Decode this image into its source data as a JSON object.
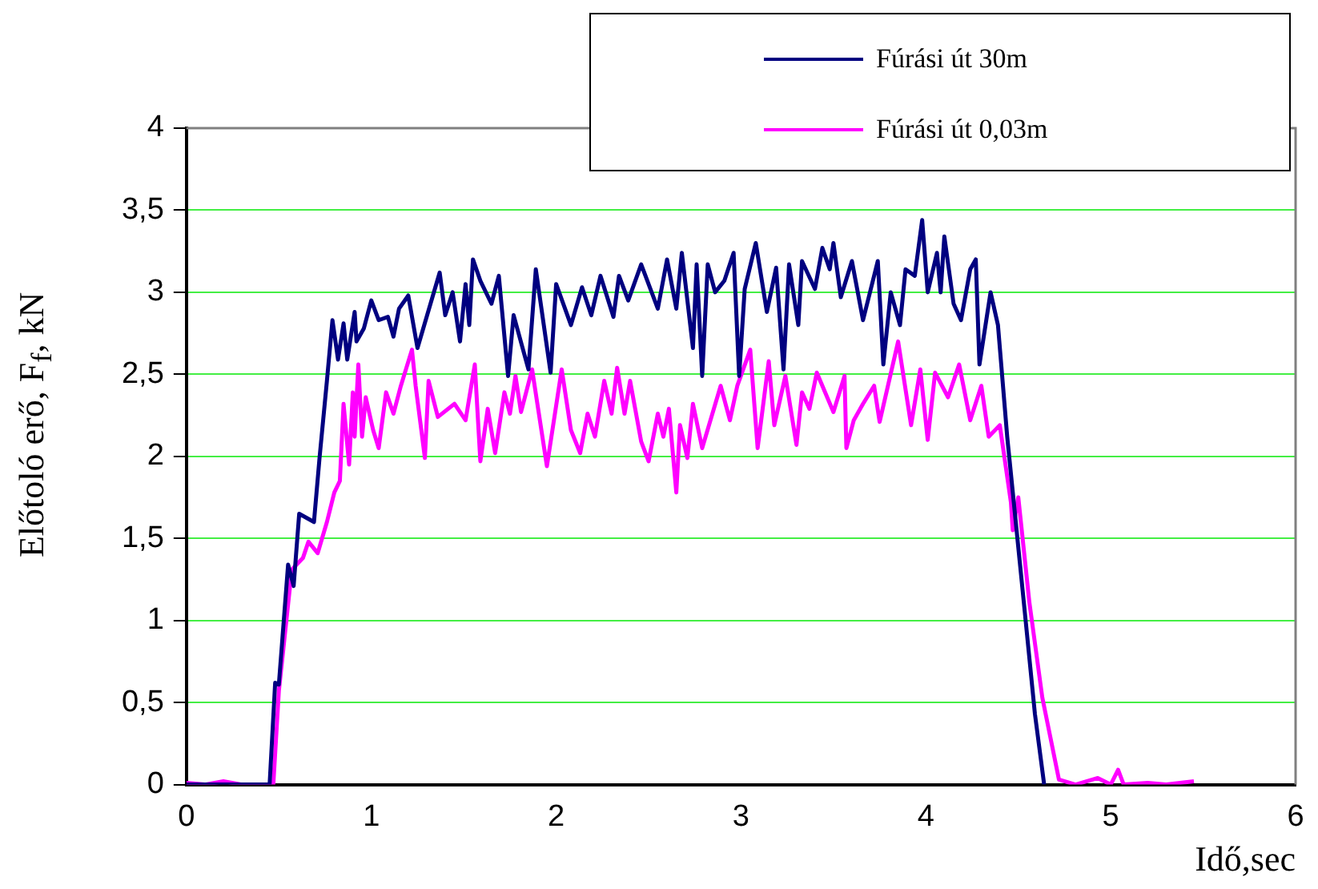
{
  "chart_data": {
    "type": "line",
    "xlabel": "Idő,sec",
    "ylabel": "Előtoló erő, F$_{f}$, kN",
    "xlim": [
      0,
      6
    ],
    "xticks": [
      0,
      1,
      2,
      3,
      4,
      5,
      6
    ],
    "ylim": [
      0,
      4
    ],
    "yticks": [
      0,
      {
        "value": 0.5,
        "label": "0,5"
      },
      1,
      {
        "value": 1.5,
        "label": "1,5"
      },
      2,
      {
        "value": 2.5,
        "label": "2,5"
      },
      3,
      {
        "value": 3.5,
        "label": "3,5"
      },
      4
    ],
    "grid": "y",
    "legend": "top right",
    "marker": "none",
    "line_style": "solid",
    "series": [
      {
        "name": "Fúrási út 30m",
        "color": "#000080",
        "x": [
          0,
          0.2,
          0.45,
          0.48,
          0.5,
          0.55,
          0.58,
          0.61,
          0.69,
          0.72,
          0.76,
          0.79,
          0.82,
          0.85,
          0.87,
          0.91,
          0.92,
          0.96,
          1.0,
          1.04,
          1.09,
          1.12,
          1.15,
          1.2,
          1.25,
          1.37,
          1.4,
          1.44,
          1.48,
          1.51,
          1.53,
          1.55,
          1.59,
          1.65,
          1.69,
          1.74,
          1.77,
          1.85,
          1.89,
          1.97,
          2.0,
          2.08,
          2.14,
          2.19,
          2.24,
          2.31,
          2.34,
          2.39,
          2.46,
          2.55,
          2.6,
          2.65,
          2.68,
          2.74,
          2.76,
          2.79,
          2.82,
          2.86,
          2.91,
          2.96,
          2.99,
          3.02,
          3.08,
          3.14,
          3.19,
          3.23,
          3.26,
          3.31,
          3.33,
          3.4,
          3.44,
          3.48,
          3.5,
          3.54,
          3.6,
          3.66,
          3.74,
          3.77,
          3.81,
          3.86,
          3.89,
          3.94,
          3.98,
          4.01,
          4.06,
          4.08,
          4.1,
          4.15,
          4.19,
          4.24,
          4.27,
          4.29,
          4.35,
          4.39,
          4.44,
          4.53,
          4.59,
          4.64
        ],
        "values": [
          0,
          0,
          0,
          0.62,
          0.61,
          1.34,
          1.21,
          1.65,
          1.6,
          1.99,
          2.46,
          2.83,
          2.59,
          2.81,
          2.59,
          2.88,
          2.7,
          2.78,
          2.95,
          2.83,
          2.85,
          2.73,
          2.9,
          2.98,
          2.66,
          3.12,
          2.86,
          3.0,
          2.7,
          3.05,
          2.8,
          3.2,
          3.07,
          2.93,
          3.1,
          2.49,
          2.86,
          2.53,
          3.14,
          2.51,
          3.05,
          2.8,
          3.03,
          2.86,
          3.1,
          2.85,
          3.1,
          2.95,
          3.17,
          2.9,
          3.2,
          2.9,
          3.24,
          2.66,
          3.17,
          2.49,
          3.17,
          3.0,
          3.07,
          3.24,
          2.49,
          3.02,
          3.3,
          2.88,
          3.15,
          2.53,
          3.17,
          2.8,
          3.19,
          3.02,
          3.27,
          3.14,
          3.3,
          2.97,
          3.19,
          2.83,
          3.19,
          2.56,
          3.0,
          2.8,
          3.14,
          3.1,
          3.44,
          3.0,
          3.24,
          3.0,
          3.34,
          2.93,
          2.83,
          3.14,
          3.2,
          2.56,
          3.0,
          2.8,
          2.12,
          1.11,
          0.43,
          0
        ]
      },
      {
        "name": "Fúrási út 0,03m",
        "color": "#ff00ff",
        "x": [
          0,
          0.1,
          0.2,
          0.3,
          0.47,
          0.5,
          0.57,
          0.63,
          0.66,
          0.71,
          0.76,
          0.8,
          0.83,
          0.85,
          0.88,
          0.9,
          0.91,
          0.93,
          0.95,
          0.97,
          1.01,
          1.04,
          1.08,
          1.12,
          1.16,
          1.22,
          1.24,
          1.29,
          1.31,
          1.36,
          1.45,
          1.51,
          1.56,
          1.59,
          1.63,
          1.67,
          1.72,
          1.75,
          1.78,
          1.81,
          1.87,
          1.95,
          2.03,
          2.08,
          2.13,
          2.17,
          2.21,
          2.26,
          2.3,
          2.33,
          2.37,
          2.4,
          2.46,
          2.5,
          2.55,
          2.58,
          2.61,
          2.65,
          2.67,
          2.71,
          2.74,
          2.79,
          2.89,
          2.94,
          2.98,
          3.05,
          3.09,
          3.15,
          3.18,
          3.24,
          3.3,
          3.33,
          3.37,
          3.41,
          3.5,
          3.56,
          3.57,
          3.61,
          3.66,
          3.72,
          3.75,
          3.85,
          3.92,
          3.97,
          4.01,
          4.05,
          4.12,
          4.18,
          4.24,
          4.3,
          4.34,
          4.4,
          4.46,
          4.47,
          4.5,
          4.56,
          4.63,
          4.72,
          4.81,
          4.93,
          5.0,
          5.04,
          5.07,
          5.2,
          5.3,
          5.45
        ],
        "values": [
          0.01,
          0,
          0.02,
          0,
          0,
          0.57,
          1.31,
          1.38,
          1.48,
          1.41,
          1.6,
          1.78,
          1.85,
          2.32,
          1.95,
          2.39,
          2.12,
          2.56,
          2.12,
          2.36,
          2.16,
          2.05,
          2.39,
          2.26,
          2.43,
          2.65,
          2.43,
          1.99,
          2.46,
          2.24,
          2.32,
          2.22,
          2.56,
          1.97,
          2.29,
          2.02,
          2.39,
          2.26,
          2.49,
          2.27,
          2.53,
          1.94,
          2.53,
          2.16,
          2.02,
          2.26,
          2.12,
          2.46,
          2.26,
          2.54,
          2.26,
          2.46,
          2.09,
          1.97,
          2.26,
          2.12,
          2.29,
          1.78,
          2.19,
          1.99,
          2.32,
          2.05,
          2.43,
          2.22,
          2.43,
          2.65,
          2.05,
          2.58,
          2.19,
          2.49,
          2.07,
          2.39,
          2.29,
          2.51,
          2.27,
          2.49,
          2.05,
          2.22,
          2.32,
          2.43,
          2.21,
          2.7,
          2.19,
          2.53,
          2.1,
          2.51,
          2.36,
          2.56,
          2.22,
          2.43,
          2.12,
          2.19,
          1.72,
          1.55,
          1.75,
          1.11,
          0.53,
          0.03,
          0,
          0.04,
          0,
          0.09,
          0,
          0.01,
          0,
          0.02
        ]
      }
    ]
  }
}
